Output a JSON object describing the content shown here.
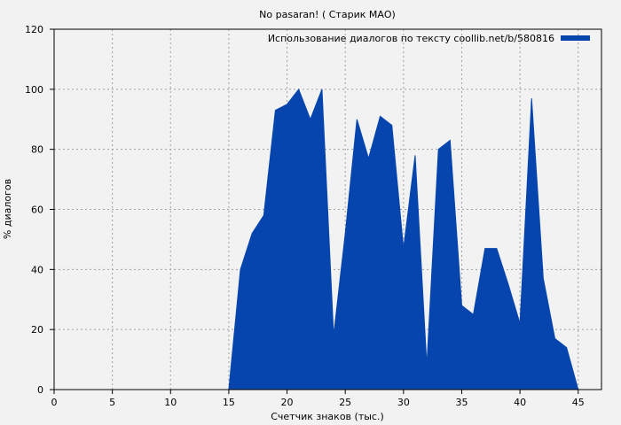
{
  "chart_data": {
    "type": "area",
    "title": "No pasaran! ( Старик МАО)",
    "xlabel": "Счетчик знаков (тыс.)",
    "ylabel": "% диалогов",
    "xlim": [
      0,
      47
    ],
    "ylim": [
      0,
      120
    ],
    "x_ticks": [
      0,
      5,
      10,
      15,
      20,
      25,
      30,
      35,
      40,
      45
    ],
    "y_ticks": [
      0,
      20,
      40,
      60,
      80,
      100,
      120
    ],
    "grid": true,
    "legend_position": "top-right",
    "series": [
      {
        "name": "Использование диалогов по тексту coollib.net/b/580816",
        "color": "#0645ad",
        "x": [
          15,
          16,
          17,
          18,
          19,
          20,
          21,
          22,
          23,
          24,
          25,
          26,
          27,
          28,
          29,
          30,
          31,
          32,
          33,
          34,
          35,
          36,
          37,
          38,
          39,
          40,
          41,
          42,
          43,
          44,
          45
        ],
        "y": [
          0,
          40,
          52,
          58,
          93,
          95,
          100,
          90,
          100,
          18,
          52,
          90,
          77,
          91,
          88,
          47,
          78,
          8,
          80,
          83,
          28,
          25,
          47,
          47,
          35,
          22,
          97,
          37,
          17,
          14,
          0
        ]
      }
    ]
  }
}
